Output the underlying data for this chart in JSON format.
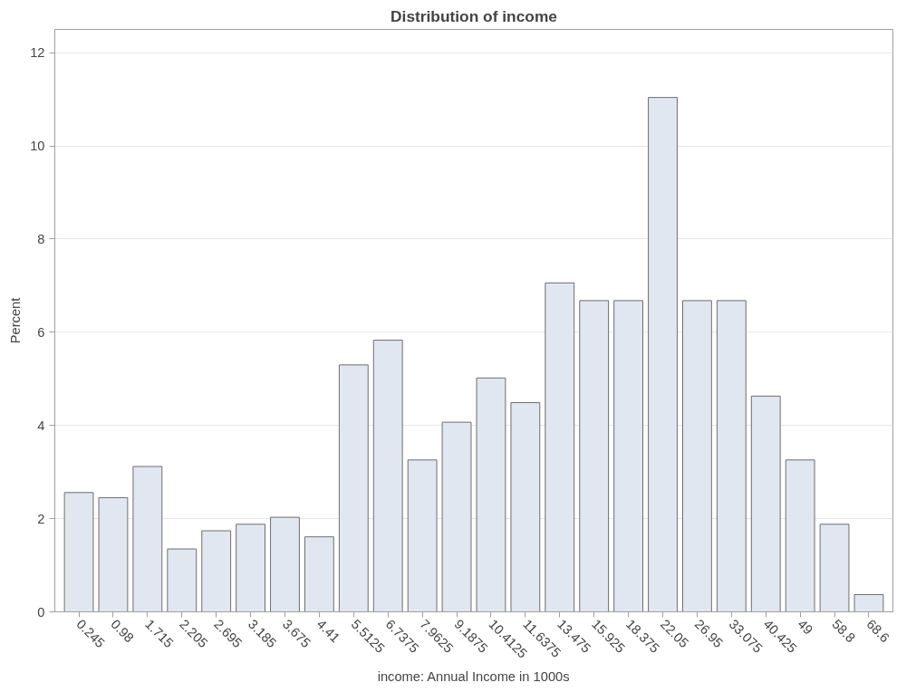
{
  "chart_data": {
    "type": "bar",
    "title": "Distribution of income",
    "xlabel": "income: Annual Income in 1000s",
    "ylabel": "Percent",
    "categories": [
      "0.245",
      "0.98",
      "1.715",
      "2.205",
      "2.695",
      "3.185",
      "3.675",
      "4.41",
      "5.5125",
      "6.7375",
      "7.9625",
      "9.1875",
      "10.4125",
      "11.6375",
      "13.475",
      "15.925",
      "18.375",
      "22.05",
      "26.95",
      "33.075",
      "40.425",
      "49",
      "58.8",
      "68.6"
    ],
    "values": [
      2.56,
      2.45,
      3.12,
      1.35,
      1.74,
      1.88,
      2.03,
      1.61,
      5.3,
      5.83,
      3.26,
      4.07,
      5.02,
      4.49,
      7.06,
      6.68,
      6.68,
      11.04,
      6.68,
      6.68,
      4.63,
      3.26,
      1.88,
      0.37
    ],
    "color": "#e1e7f0",
    "ylim": [
      0,
      12.5
    ],
    "yticks": [
      0,
      2,
      4,
      6,
      8,
      10,
      12
    ],
    "grid": "y"
  }
}
